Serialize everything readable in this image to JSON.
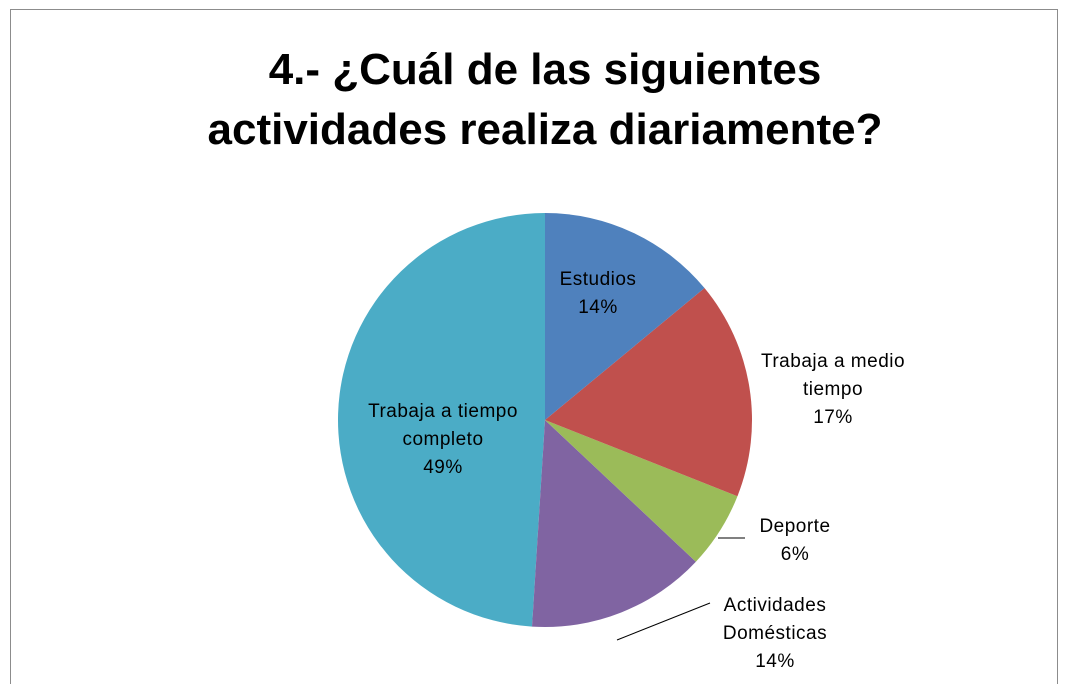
{
  "chart_data": {
    "type": "pie",
    "title": "4.- ¿Cuál de las siguientes actividades realiza diariamente?",
    "categories": [
      "Estudios",
      "Trabaja a medio tiempo",
      "Deporte",
      "Actividades Domésticas",
      "Trabaja a tiempo completo"
    ],
    "values": [
      14,
      17,
      6,
      14,
      49
    ],
    "value_labels": [
      "14%",
      "17%",
      "6%",
      "14%",
      "49%"
    ],
    "colors": [
      "#4f81bd",
      "#c0504d",
      "#9bbb59",
      "#8064a2",
      "#4bacc6"
    ]
  }
}
